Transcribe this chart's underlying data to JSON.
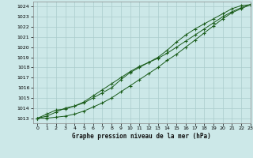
{
  "title": "Graphe pression niveau de la mer (hPa)",
  "bg_color": "#cce8e8",
  "grid_color": "#aacccc",
  "line_color": "#1a5c1a",
  "xlim": [
    -0.5,
    23
  ],
  "ylim": [
    1012.5,
    1024.5
  ],
  "yticks": [
    1013,
    1014,
    1015,
    1016,
    1017,
    1018,
    1019,
    1020,
    1021,
    1022,
    1023,
    1024
  ],
  "xticks": [
    0,
    1,
    2,
    3,
    4,
    5,
    6,
    7,
    8,
    9,
    10,
    11,
    12,
    13,
    14,
    15,
    16,
    17,
    18,
    19,
    20,
    21,
    22,
    23
  ],
  "series": [
    [
      1013.0,
      1013.4,
      1013.8,
      1013.9,
      1014.2,
      1014.5,
      1015.0,
      1015.5,
      1016.0,
      1016.8,
      1017.5,
      1018.0,
      1018.5,
      1019.0,
      1019.7,
      1020.5,
      1021.2,
      1021.8,
      1022.3,
      1022.8,
      1023.3,
      1023.8,
      1024.1,
      1024.2
    ],
    [
      1013.0,
      1013.2,
      1013.6,
      1014.0,
      1014.2,
      1014.6,
      1015.2,
      1015.8,
      1016.4,
      1017.0,
      1017.6,
      1018.1,
      1018.5,
      1018.9,
      1019.4,
      1020.0,
      1020.6,
      1021.2,
      1021.8,
      1022.4,
      1023.0,
      1023.5,
      1023.9,
      1024.2
    ],
    [
      1013.0,
      1013.0,
      1013.1,
      1013.2,
      1013.4,
      1013.7,
      1014.1,
      1014.5,
      1015.0,
      1015.6,
      1016.2,
      1016.8,
      1017.4,
      1018.0,
      1018.7,
      1019.3,
      1020.0,
      1020.7,
      1021.4,
      1022.1,
      1022.8,
      1023.4,
      1023.8,
      1024.2
    ]
  ]
}
